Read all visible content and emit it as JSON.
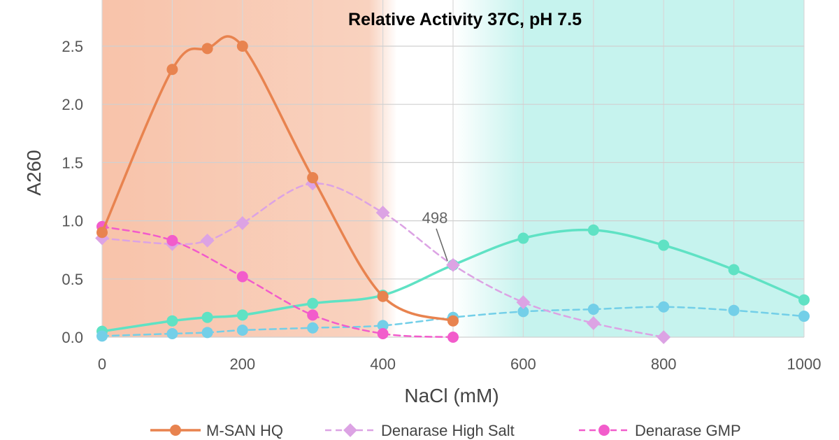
{
  "chart_data": {
    "type": "line",
    "title": "Relative Activity 37C, pH 7.5",
    "xlabel": "NaCl (mM)",
    "ylabel": "A260",
    "xlim": [
      0,
      1000
    ],
    "ylim": [
      0,
      2.5
    ],
    "xticks": [
      "0",
      "200",
      "400",
      "600",
      "800",
      "1000"
    ],
    "yticks": [
      "0.0",
      "0.5",
      "1.0",
      "1.5",
      "2.0",
      "2.5"
    ],
    "grid": true,
    "legend_position": "bottom",
    "background_regions": [
      {
        "from": 0,
        "to": 400,
        "color": "#f8c3aa"
      },
      {
        "from": 500,
        "to": 1000,
        "color": "#c6f3ee"
      }
    ],
    "series": [
      {
        "name": "M-SAN HQ",
        "color": "#e8834f",
        "style": "solid",
        "x": [
          0,
          100,
          150,
          200,
          300,
          400,
          500
        ],
        "y": [
          0.9,
          2.3,
          2.48,
          2.5,
          1.37,
          0.35,
          0.14
        ]
      },
      {
        "name": "Denarase High Salt",
        "color": "#dca3e4",
        "style": "dashed",
        "x": [
          0,
          100,
          150,
          200,
          300,
          400,
          500,
          600,
          700,
          800
        ],
        "y": [
          0.85,
          0.8,
          0.83,
          0.98,
          1.32,
          1.07,
          0.62,
          0.3,
          0.12,
          0.0
        ]
      },
      {
        "name": "Denarase GMP",
        "color": "#f25ccb",
        "style": "dashed",
        "x": [
          0,
          100,
          200,
          300,
          400,
          500
        ],
        "y": [
          0.95,
          0.83,
          0.52,
          0.19,
          0.03,
          0.0
        ]
      },
      {
        "color": "#5fe2c4",
        "style": "solid",
        "x": [
          0,
          100,
          150,
          200,
          300,
          400,
          500,
          600,
          700,
          800,
          900,
          1000
        ],
        "y": [
          0.05,
          0.14,
          0.17,
          0.19,
          0.29,
          0.36,
          0.62,
          0.85,
          0.92,
          0.79,
          0.58,
          0.32
        ]
      },
      {
        "color": "#73cfe8",
        "style": "dashed",
        "x": [
          0,
          100,
          150,
          200,
          300,
          400,
          500,
          600,
          700,
          800,
          900,
          1000
        ],
        "y": [
          0.01,
          0.03,
          0.04,
          0.06,
          0.08,
          0.1,
          0.17,
          0.22,
          0.24,
          0.26,
          0.23,
          0.18
        ]
      }
    ],
    "annotations": [
      {
        "text": "498",
        "x": 500,
        "y": 0.62
      }
    ]
  }
}
